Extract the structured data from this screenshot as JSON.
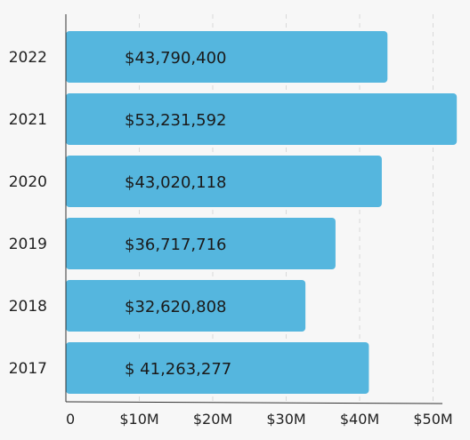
{
  "chart_data": {
    "type": "bar",
    "orientation": "horizontal",
    "title": "",
    "xlabel": "",
    "ylabel": "",
    "categories": [
      "2022",
      "2021",
      "2020",
      "2019",
      "2018",
      "2017"
    ],
    "values": [
      43790400,
      53231592,
      43020118,
      36717716,
      32620808,
      41263277
    ],
    "data_labels": [
      "$43,790,400",
      "$53,231,592",
      "$43,020,118",
      "$36,717,716",
      "$32,620,808",
      "$ 41,263,277"
    ],
    "x_ticks": [
      0,
      10000000,
      20000000,
      30000000,
      40000000,
      50000000
    ],
    "x_tick_labels": [
      "0",
      "$10M",
      "$20M",
      "$30M",
      "$40M",
      "$50M"
    ],
    "xlim": [
      0,
      50000000
    ],
    "grid": "vertical dashed",
    "legend": "none",
    "bar_color": "#55b6de"
  }
}
